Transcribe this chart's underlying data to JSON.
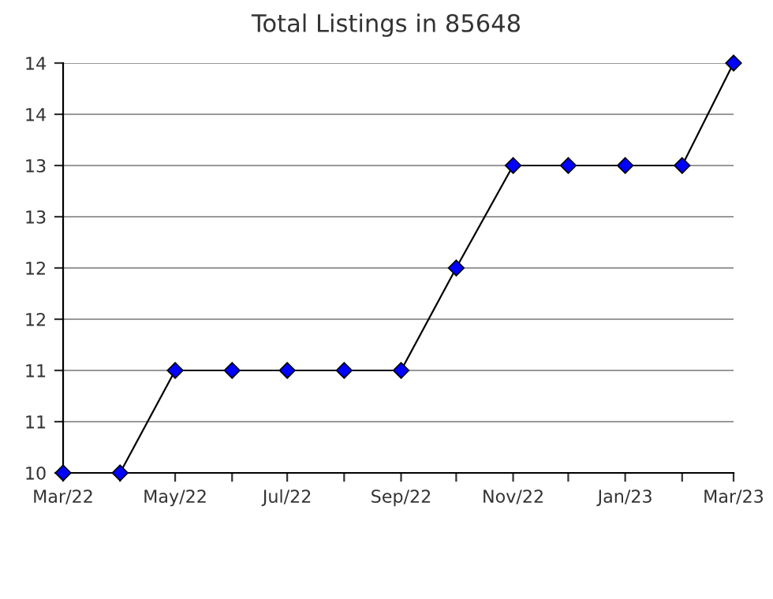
{
  "chart_data": {
    "type": "line",
    "title": "Total Listings in 85648",
    "x": [
      "2022-03",
      "2022-04",
      "2022-05",
      "2022-06",
      "2022-07",
      "2022-08",
      "2022-09",
      "2022-10",
      "2022-11",
      "2022-12",
      "2023-01",
      "2023-02",
      "2023-03"
    ],
    "series": [
      {
        "color": "#0000ff",
        "values": [
          10,
          10,
          11,
          11,
          11,
          11,
          11,
          12,
          13,
          13,
          13,
          13,
          14
        ]
      }
    ],
    "marker": "diamond",
    "line_style": "solid",
    "grid": "y",
    "xlim": [
      "2022-03",
      "2023-03"
    ],
    "xticks": [
      {
        "value": "2022-03",
        "label": "Mar/22"
      },
      {
        "value": "2022-04",
        "label": null
      },
      {
        "value": "2022-05",
        "label": "May/22"
      },
      {
        "value": "2022-06",
        "label": null
      },
      {
        "value": "2022-07",
        "label": "Jul/22"
      },
      {
        "value": "2022-08",
        "label": null
      },
      {
        "value": "2022-09",
        "label": "Sep/22"
      },
      {
        "value": "2022-10",
        "label": null
      },
      {
        "value": "2022-11",
        "label": "Nov/22"
      },
      {
        "value": "2022-12",
        "label": null
      },
      {
        "value": "2023-01",
        "label": "Jan/23"
      },
      {
        "value": "2023-02",
        "label": null
      },
      {
        "value": "2023-03",
        "label": "Mar/23"
      }
    ],
    "ylim": [
      10,
      14
    ],
    "yticks": [
      10,
      {
        "value": 10.5,
        "label": "11"
      },
      11,
      {
        "value": 11.5,
        "label": "12"
      },
      12,
      {
        "value": 12.5,
        "label": "13"
      },
      13,
      {
        "value": 13.5,
        "label": "14"
      },
      14
    ]
  }
}
